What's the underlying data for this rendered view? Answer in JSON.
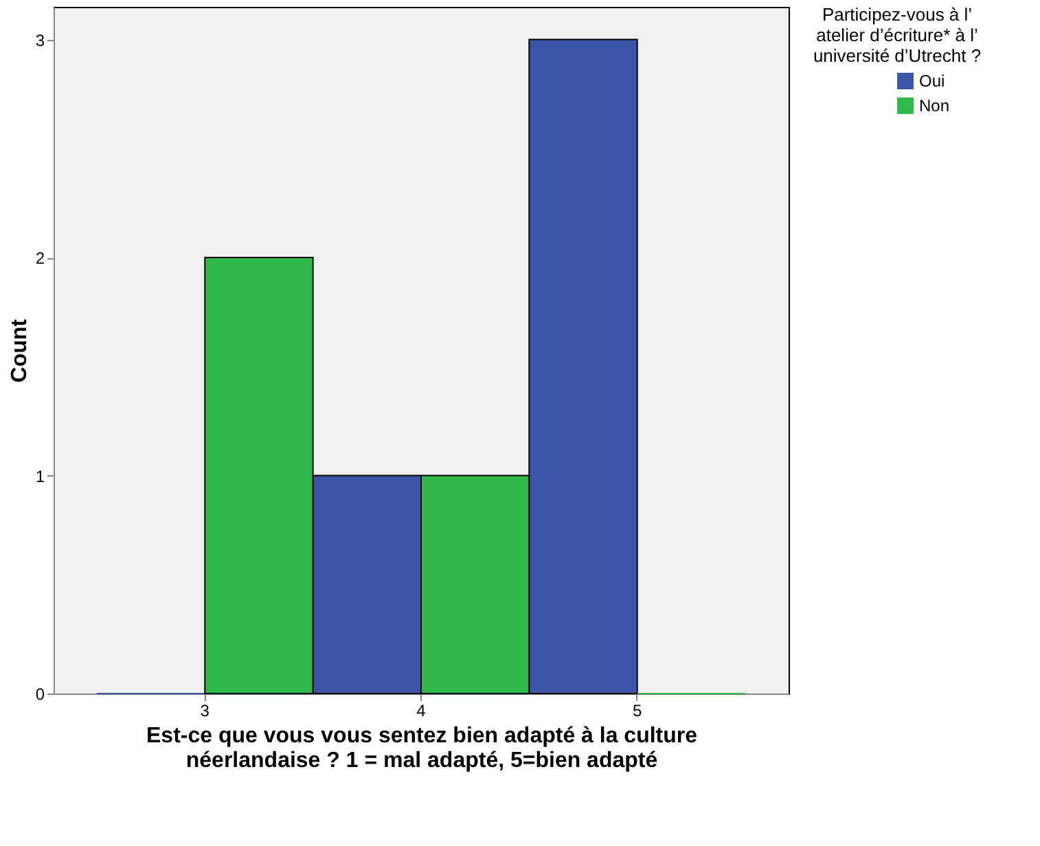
{
  "chart_data": {
    "type": "bar",
    "xlabel": "Est-ce que vous vous sentez bien adapté à la culture néerlandaise ? 1 = mal adapté, 5=bien adapté",
    "ylabel": "Count",
    "legend_title": "Participez-vous à l’ atelier d’écriture* à l’ université d’Utrecht ?",
    "categories": [
      "3",
      "4",
      "5"
    ],
    "series": [
      {
        "name": "Oui",
        "color": "#3d55a9",
        "values": [
          0,
          1,
          3
        ]
      },
      {
        "name": "Non",
        "color": "#30b84b",
        "values": [
          2,
          1,
          0
        ]
      }
    ],
    "ylim": [
      0,
      3.15
    ],
    "yticks": [
      0,
      1,
      2,
      3
    ],
    "grid": false,
    "legend": "top right"
  }
}
